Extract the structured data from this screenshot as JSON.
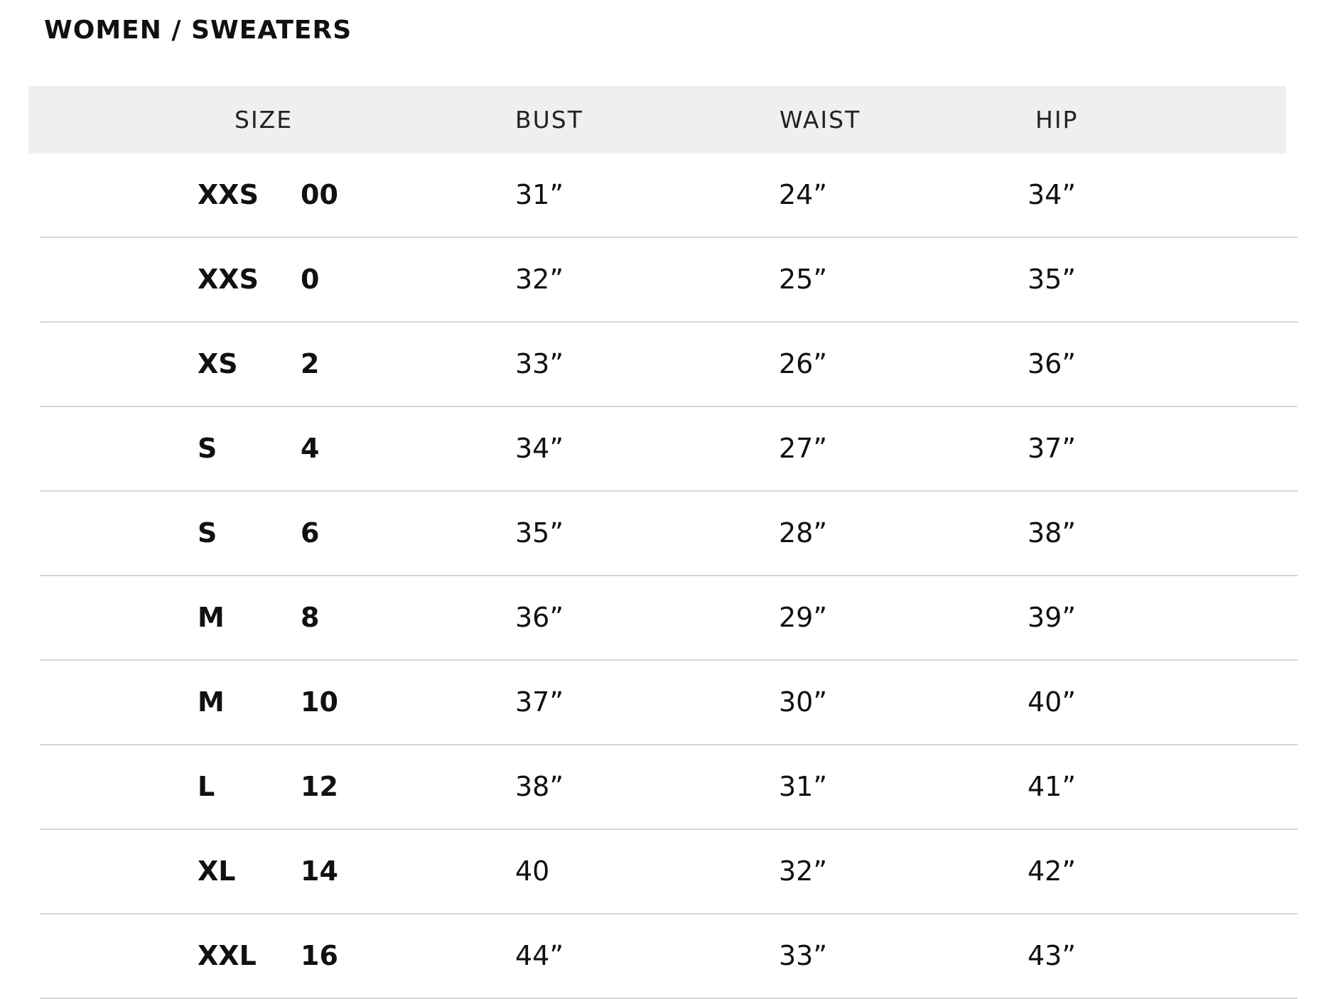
{
  "title": "WOMEN / SWEATERS",
  "headers": {
    "size": "SIZE",
    "bust": "BUST",
    "waist": "WAIST",
    "hip": "HIP"
  },
  "rows": [
    {
      "letter": "XXS",
      "number": "00",
      "bust": "31”",
      "waist": "24”",
      "hip": "34”"
    },
    {
      "letter": "XXS",
      "number": "0",
      "bust": "32”",
      "waist": "25”",
      "hip": "35”"
    },
    {
      "letter": "XS",
      "number": "2",
      "bust": "33”",
      "waist": "26”",
      "hip": "36”"
    },
    {
      "letter": "S",
      "number": "4",
      "bust": "34”",
      "waist": "27”",
      "hip": "37”"
    },
    {
      "letter": "S",
      "number": "6",
      "bust": "35”",
      "waist": "28”",
      "hip": "38”"
    },
    {
      "letter": "M",
      "number": "8",
      "bust": "36”",
      "waist": "29”",
      "hip": "39”"
    },
    {
      "letter": "M",
      "number": "10",
      "bust": "37”",
      "waist": "30”",
      "hip": "40”"
    },
    {
      "letter": "L",
      "number": "12",
      "bust": "38”",
      "waist": "31”",
      "hip": "41”"
    },
    {
      "letter": "XL",
      "number": "14",
      "bust": "40",
      "waist": "32”",
      "hip": "42”"
    },
    {
      "letter": "XXL",
      "number": "16",
      "bust": "44”",
      "waist": "33”",
      "hip": "43”"
    }
  ]
}
